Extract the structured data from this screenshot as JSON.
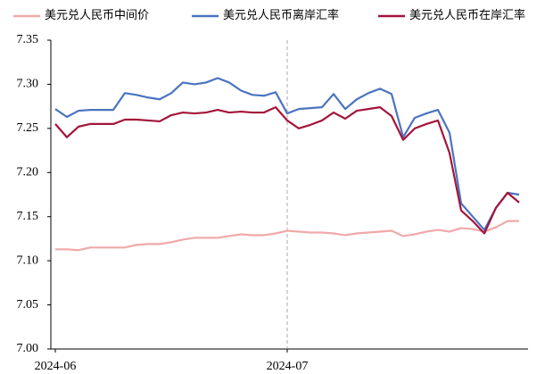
{
  "chart_data": {
    "type": "line",
    "categories": [
      "2024-06",
      null,
      null,
      null,
      null,
      null,
      null,
      null,
      null,
      null,
      null,
      null,
      null,
      null,
      null,
      null,
      null,
      null,
      null,
      null,
      "2024-07",
      null,
      null,
      null,
      null,
      null,
      null,
      null,
      null,
      null,
      null,
      null,
      null,
      null,
      null,
      null,
      null,
      null,
      null,
      null,
      null
    ],
    "series": [
      {
        "name": "美元兑人民币中间价",
        "color": "#f0a9a9",
        "values": [
          7.113,
          7.113,
          7.112,
          7.115,
          7.115,
          7.115,
          7.115,
          7.118,
          7.119,
          7.119,
          7.121,
          7.124,
          7.126,
          7.126,
          7.126,
          7.128,
          7.13,
          7.129,
          7.129,
          7.131,
          7.134,
          7.133,
          7.132,
          7.132,
          7.131,
          7.129,
          7.131,
          7.132,
          7.133,
          7.134,
          7.128,
          7.13,
          7.133,
          7.135,
          7.133,
          7.137,
          7.136,
          7.133,
          7.138,
          7.145,
          7.145
        ]
      },
      {
        "name": "美元兑人民币离岸汇率",
        "color": "#4a74c0",
        "values": [
          7.272,
          7.263,
          7.27,
          7.271,
          7.271,
          7.271,
          7.29,
          7.288,
          7.285,
          7.283,
          7.29,
          7.302,
          7.3,
          7.302,
          7.307,
          7.302,
          7.293,
          7.288,
          7.287,
          7.291,
          7.267,
          7.272,
          7.273,
          7.274,
          7.289,
          7.272,
          7.283,
          7.29,
          7.295,
          7.289,
          7.24,
          7.262,
          7.267,
          7.271,
          7.245,
          7.165,
          7.15,
          7.135,
          7.16,
          7.177,
          7.175
        ]
      },
      {
        "name": "美元兑人民币在岸汇率",
        "color": "#a3153a",
        "values": [
          7.255,
          7.24,
          7.252,
          7.255,
          7.255,
          7.255,
          7.26,
          7.26,
          7.259,
          7.258,
          7.265,
          7.268,
          7.267,
          7.268,
          7.271,
          7.268,
          7.269,
          7.268,
          7.268,
          7.274,
          7.259,
          7.25,
          7.254,
          7.259,
          7.268,
          7.261,
          7.27,
          7.272,
          7.274,
          7.264,
          7.237,
          7.25,
          7.255,
          7.259,
          7.222,
          7.157,
          7.145,
          7.131,
          7.16,
          7.177,
          7.166
        ]
      }
    ],
    "ylim": [
      7.0,
      7.35
    ],
    "yticks": [
      {
        "value": 7.0,
        "label": "7.00"
      },
      {
        "value": 7.05,
        "label": "7.05"
      },
      {
        "value": 7.1,
        "label": "7.10"
      },
      {
        "value": 7.15,
        "label": "7.15"
      },
      {
        "value": 7.2,
        "label": "7.20"
      },
      {
        "value": 7.25,
        "label": "7.25"
      },
      {
        "value": 7.3,
        "label": "7.30"
      },
      {
        "value": 7.35,
        "label": "7.35"
      }
    ],
    "grid": false,
    "legend": "top"
  }
}
